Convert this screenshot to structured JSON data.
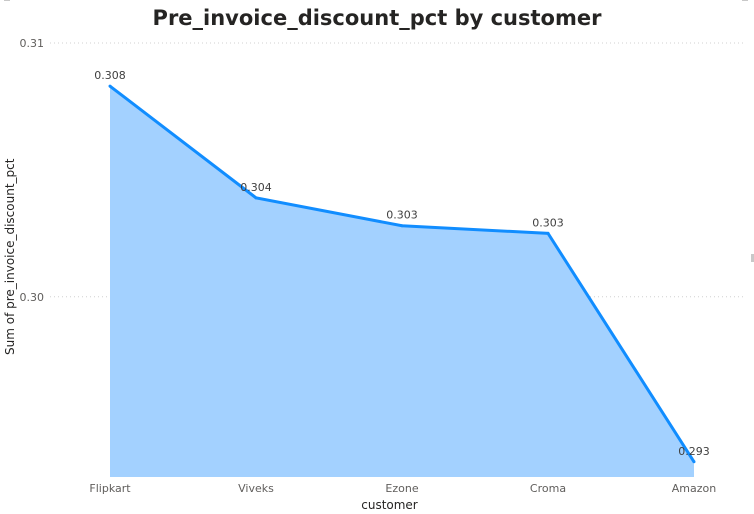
{
  "chart_data": {
    "type": "area",
    "title": "Pre_invoice_discount_pct by customer",
    "xlabel": "customer",
    "ylabel": "Sum of pre_invoice_discount_pct",
    "categories": [
      "Flipkart",
      "Viveks",
      "Ezone",
      "Croma",
      "Amazon"
    ],
    "values": [
      0.3083,
      0.3039,
      0.3028,
      0.3025,
      0.2935
    ],
    "data_labels": [
      "0.308",
      "0.304",
      "0.303",
      "0.303",
      "0.293"
    ],
    "y_ticks": [
      {
        "value": 0.3,
        "label": "0.30"
      },
      {
        "value": 0.31,
        "label": "0.31"
      }
    ],
    "ylim": [
      0.2929,
      0.31
    ],
    "grid": true,
    "legend": "none",
    "colors": {
      "line": "#118DFF",
      "fill": "#A3D1FF",
      "grid": "#d0d0d0",
      "text": "#605E5C"
    }
  }
}
